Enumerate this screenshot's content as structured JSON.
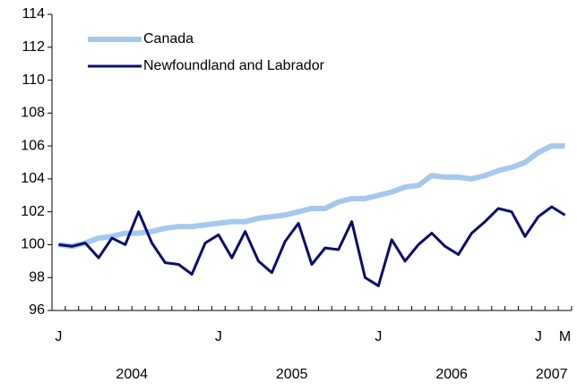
{
  "chart_data": {
    "type": "line",
    "categories": [
      "J",
      null,
      null,
      null,
      null,
      null,
      null,
      null,
      null,
      null,
      null,
      null,
      "J",
      null,
      null,
      null,
      null,
      null,
      null,
      null,
      null,
      null,
      null,
      null,
      "J",
      null,
      null,
      null,
      null,
      null,
      null,
      null,
      null,
      null,
      null,
      null,
      "J",
      null,
      "M"
    ],
    "x_groups": [
      "2004",
      "2005",
      "2006",
      "2007"
    ],
    "series": [
      {
        "name": "Canada",
        "color": "#a6c8ec",
        "values": [
          100.0,
          99.9,
          100.1,
          100.4,
          100.5,
          100.7,
          100.7,
          100.8,
          101.0,
          101.1,
          101.1,
          101.2,
          101.3,
          101.4,
          101.4,
          101.6,
          101.7,
          101.8,
          102.0,
          102.2,
          102.2,
          102.6,
          102.8,
          102.8,
          103.0,
          103.2,
          103.5,
          103.6,
          104.2,
          104.1,
          104.1,
          104.0,
          104.2,
          104.5,
          104.7,
          105.0,
          105.6,
          106.0,
          106.0
        ]
      },
      {
        "name": "Newfoundland and Labrador",
        "color": "#0c0c6e",
        "values": [
          100.0,
          99.9,
          100.1,
          99.2,
          100.4,
          100.0,
          102.0,
          100.1,
          98.9,
          98.8,
          98.2,
          100.1,
          100.6,
          99.2,
          100.8,
          99.0,
          98.3,
          100.2,
          101.3,
          98.8,
          99.8,
          99.7,
          101.4,
          98.0,
          97.5,
          100.3,
          99.0,
          100.0,
          100.7,
          99.9,
          99.4,
          100.7,
          101.4,
          102.2,
          102.0,
          100.5,
          101.7,
          102.3,
          101.8
        ]
      }
    ],
    "ylim": [
      96,
      114
    ],
    "yticks": [
      96,
      98,
      100,
      102,
      104,
      106,
      108,
      110,
      112,
      114
    ],
    "legend": "upper-left",
    "grid": false
  }
}
